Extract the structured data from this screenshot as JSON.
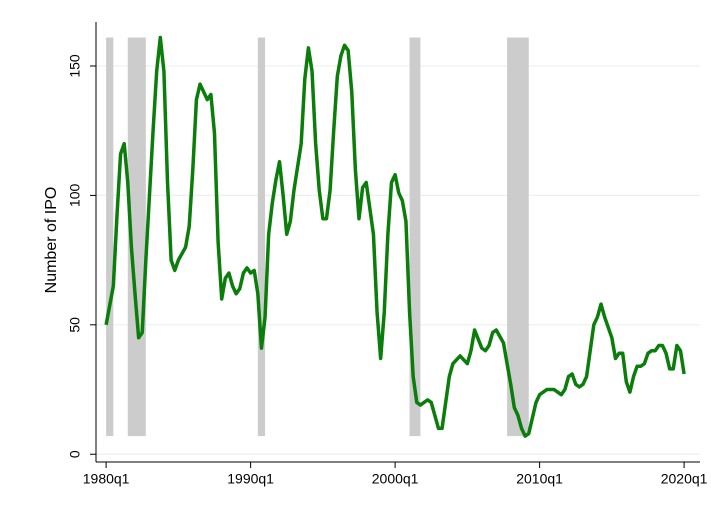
{
  "chart_data": {
    "type": "line",
    "y_label": "Number of IPO",
    "xlim": [
      1979.3,
      2021.1
    ],
    "ylim": [
      -3,
      167
    ],
    "xticks": [
      {
        "value": 1980,
        "label": "1980q1"
      },
      {
        "value": 1990,
        "label": "1990q1"
      },
      {
        "value": 2000,
        "label": "2000q1"
      },
      {
        "value": 2010,
        "label": "2010q1"
      },
      {
        "value": 2020,
        "label": "2020q1"
      }
    ],
    "yticks": [
      0,
      50,
      100,
      150
    ],
    "grid": true,
    "recession_color": "#cccccc",
    "recessions": [
      [
        1980.0,
        1980.5
      ],
      [
        1981.5,
        1982.75
      ],
      [
        1990.5,
        1991.0
      ],
      [
        2001.0,
        2001.75
      ],
      [
        2007.75,
        2009.25
      ]
    ],
    "series": [
      {
        "color": "#0a7d0a",
        "x": [
          1980.0,
          1980.5,
          1980.75,
          1981.0,
          1981.25,
          1981.5,
          1981.75,
          1982.0,
          1982.25,
          1982.5,
          1982.75,
          1983.0,
          1983.25,
          1983.5,
          1983.75,
          1984.0,
          1984.25,
          1984.5,
          1984.75,
          1985.0,
          1985.5,
          1985.75,
          1986.0,
          1986.25,
          1986.5,
          1986.75,
          1987.0,
          1987.25,
          1987.5,
          1987.75,
          1988.0,
          1988.25,
          1988.5,
          1988.75,
          1989.0,
          1989.25,
          1989.5,
          1989.75,
          1990.0,
          1990.25,
          1990.5,
          1990.75,
          1991.0,
          1991.25,
          1991.5,
          1991.75,
          1992.0,
          1992.25,
          1992.5,
          1992.75,
          1993.0,
          1993.5,
          1993.75,
          1994.0,
          1994.25,
          1994.5,
          1994.75,
          1995.0,
          1995.25,
          1995.5,
          1995.75,
          1996.0,
          1996.25,
          1996.5,
          1996.75,
          1997.0,
          1997.25,
          1997.5,
          1997.75,
          1998.0,
          1998.25,
          1998.5,
          1998.75,
          1999.0,
          1999.25,
          1999.5,
          1999.75,
          2000.0,
          2000.25,
          2000.5,
          2000.75,
          2001.0,
          2001.25,
          2001.5,
          2001.75,
          2002.0,
          2002.25,
          2002.5,
          2002.75,
          2003.0,
          2003.25,
          2003.5,
          2003.75,
          2004.0,
          2004.5,
          2005.0,
          2005.25,
          2005.5,
          2006.0,
          2006.25,
          2006.5,
          2006.75,
          2007.0,
          2007.5,
          2007.75,
          2008.0,
          2008.25,
          2008.5,
          2008.75,
          2009.0,
          2009.25,
          2009.5,
          2009.75,
          2010.0,
          2010.5,
          2011.0,
          2011.5,
          2011.75,
          2012.0,
          2012.25,
          2012.5,
          2012.75,
          2013.0,
          2013.25,
          2013.5,
          2013.75,
          2014.0,
          2014.25,
          2014.5,
          2015.0,
          2015.25,
          2015.5,
          2015.75,
          2016.0,
          2016.25,
          2016.5,
          2016.75,
          2017.0,
          2017.25,
          2017.5,
          2017.75,
          2018.0,
          2018.25,
          2018.5,
          2018.75,
          2019.0,
          2019.25,
          2019.5,
          2019.75,
          2020.0
        ],
        "values": [
          50,
          65,
          92,
          116,
          120,
          105,
          80,
          62,
          45,
          47,
          75,
          100,
          125,
          148,
          161,
          148,
          105,
          75,
          71,
          75,
          80,
          88,
          110,
          137,
          143,
          140,
          137,
          139,
          124,
          82,
          60,
          68,
          70,
          65,
          62,
          64,
          70,
          72,
          70,
          71,
          62,
          41,
          53,
          85,
          97,
          106,
          113,
          100,
          85,
          90,
          102,
          120,
          145,
          157,
          148,
          120,
          102,
          91,
          91,
          102,
          125,
          146,
          154,
          158,
          156,
          140,
          110,
          91,
          103,
          105,
          95,
          85,
          55,
          37,
          55,
          85,
          105,
          108,
          101,
          98,
          90,
          55,
          30,
          20,
          19,
          20,
          21,
          20,
          15,
          10,
          10,
          20,
          30,
          35,
          38,
          35,
          40,
          48,
          41,
          40,
          42,
          47,
          48,
          43,
          35,
          27,
          18,
          15,
          10,
          7,
          8,
          14,
          20,
          23,
          25,
          25,
          23,
          25,
          30,
          31,
          27,
          26,
          27,
          30,
          40,
          50,
          53,
          58,
          53,
          45,
          37,
          39,
          39,
          28,
          24,
          30,
          34,
          34,
          35,
          39,
          40,
          40,
          42,
          42,
          39,
          33,
          33,
          42,
          40,
          31
        ]
      }
    ]
  }
}
